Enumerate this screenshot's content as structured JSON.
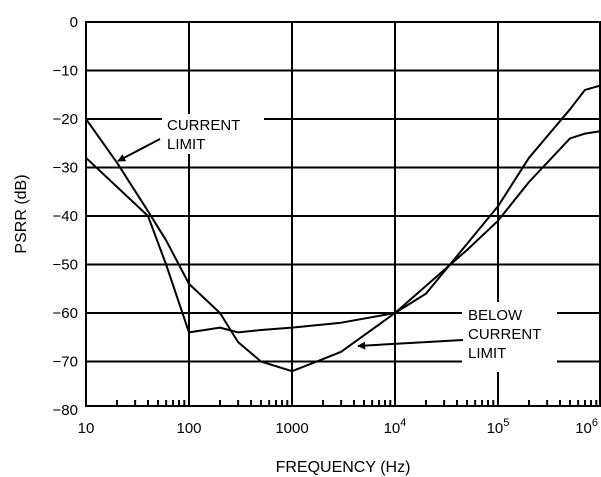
{
  "chart_data": {
    "type": "line",
    "title": "",
    "xlabel": "FREQUENCY (Hz)",
    "ylabel": "PSRR (dB)",
    "xscale": "log",
    "xlim": [
      10,
      1500000
    ],
    "ylim": [
      -82,
      0
    ],
    "grid": true,
    "x_tick_labels": [
      {
        "value": 10,
        "text": "10"
      },
      {
        "value": 100,
        "text": "100"
      },
      {
        "value": 1000,
        "text": "1000"
      },
      {
        "value": 10000,
        "base": "10",
        "exp": "4"
      },
      {
        "value": 100000,
        "base": "10",
        "exp": "5"
      },
      {
        "value": 1000000,
        "base": "10",
        "exp": "6"
      }
    ],
    "y_tick_labels": [
      {
        "value": 0,
        "text": "0"
      },
      {
        "value": -10,
        "text": "−10"
      },
      {
        "value": -20,
        "text": "−20"
      },
      {
        "value": -30,
        "text": "−30"
      },
      {
        "value": -40,
        "text": "−40"
      },
      {
        "value": -50,
        "text": "−50"
      },
      {
        "value": -60,
        "text": "−60"
      },
      {
        "value": -70,
        "text": "−70"
      },
      {
        "value": -80,
        "text": "−80"
      }
    ],
    "series": [
      {
        "key": "current_limit",
        "x": [
          10,
          20,
          40,
          60,
          100,
          200,
          300,
          500,
          1000,
          3000,
          10000,
          50000,
          100000,
          200000,
          500000,
          700000,
          1000000,
          1500000
        ],
        "y": [
          -28,
          -34,
          -40,
          -50,
          -64,
          -63,
          -64,
          -63.5,
          -63,
          -62,
          -60,
          -47,
          -41,
          -33,
          -24,
          -23,
          -22.5,
          -22
        ]
      },
      {
        "key": "below_current_limit",
        "x": [
          10,
          20,
          40,
          60,
          100,
          200,
          300,
          500,
          1000,
          2000,
          3000,
          10000,
          20000,
          100000,
          200000,
          500000,
          700000,
          1500000
        ],
        "y": [
          -20,
          -29,
          -39,
          -45,
          -54,
          -60,
          -66,
          -70,
          -72,
          -69.5,
          -68,
          -60,
          -56,
          -38,
          -28,
          -18,
          -14,
          -12
        ]
      }
    ],
    "annotations": [
      {
        "lines": [
          "CURRENT",
          "LIMIT"
        ],
        "points_to": "current_limit"
      },
      {
        "lines": [
          "BELOW",
          "CURRENT",
          "LIMIT"
        ],
        "points_to": "below_current_limit"
      }
    ]
  }
}
